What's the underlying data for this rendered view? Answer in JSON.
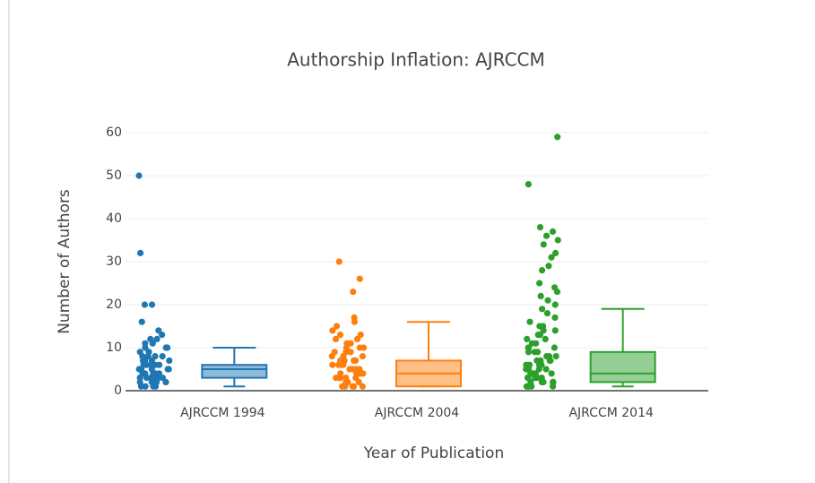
{
  "chart_data": {
    "type": "box",
    "title": "Authorship Inflation: AJRCCM",
    "x_label": "Year of Publication",
    "y_label": "Number of Authors",
    "categories": [
      "AJRCCM 1994",
      "AJRCCM 2004",
      "AJRCCM 2014"
    ],
    "ylim": [
      0,
      60
    ],
    "yticks": [
      0,
      10,
      20,
      30,
      40,
      50,
      60
    ],
    "grid": true,
    "series": [
      {
        "color": "#1f77b4",
        "lowerfence": 1,
        "q1": 3,
        "median": 5,
        "q3": 6,
        "upperfence": 10,
        "points": [
          1,
          1,
          1,
          1,
          2,
          2,
          2,
          2,
          2,
          3,
          3,
          3,
          3,
          3,
          3,
          4,
          4,
          4,
          4,
          4,
          4,
          5,
          5,
          5,
          5,
          5,
          5,
          6,
          6,
          6,
          6,
          6,
          7,
          7,
          7,
          7,
          8,
          8,
          8,
          8,
          9,
          9,
          9,
          10,
          10,
          10,
          11,
          11,
          12,
          12,
          13,
          14,
          16,
          20,
          20,
          32,
          50
        ]
      },
      {
        "color": "#ff7f0e",
        "lowerfence": 1,
        "q1": 1,
        "median": 4,
        "q3": 7,
        "upperfence": 16,
        "points": [
          1,
          1,
          1,
          1,
          1,
          2,
          2,
          2,
          2,
          2,
          3,
          3,
          3,
          3,
          3,
          4,
          4,
          4,
          4,
          4,
          5,
          5,
          5,
          5,
          6,
          6,
          6,
          6,
          7,
          7,
          7,
          7,
          8,
          8,
          8,
          9,
          9,
          9,
          10,
          10,
          10,
          11,
          11,
          12,
          12,
          13,
          13,
          14,
          15,
          16,
          17,
          23,
          26,
          30
        ]
      },
      {
        "color": "#2ca02c",
        "lowerfence": 1,
        "q1": 2,
        "median": 4,
        "q3": 9,
        "upperfence": 19,
        "points": [
          1,
          1,
          1,
          1,
          1,
          2,
          2,
          2,
          2,
          2,
          3,
          3,
          3,
          3,
          3,
          4,
          4,
          4,
          4,
          4,
          5,
          5,
          5,
          5,
          6,
          6,
          6,
          6,
          7,
          7,
          7,
          7,
          8,
          8,
          8,
          9,
          9,
          9,
          10,
          10,
          10,
          11,
          11,
          12,
          12,
          13,
          13,
          14,
          14,
          15,
          15,
          16,
          17,
          18,
          19,
          20,
          21,
          22,
          23,
          24,
          25,
          28,
          29,
          31,
          32,
          34,
          35,
          36,
          37,
          38,
          48,
          59
        ]
      }
    ]
  }
}
